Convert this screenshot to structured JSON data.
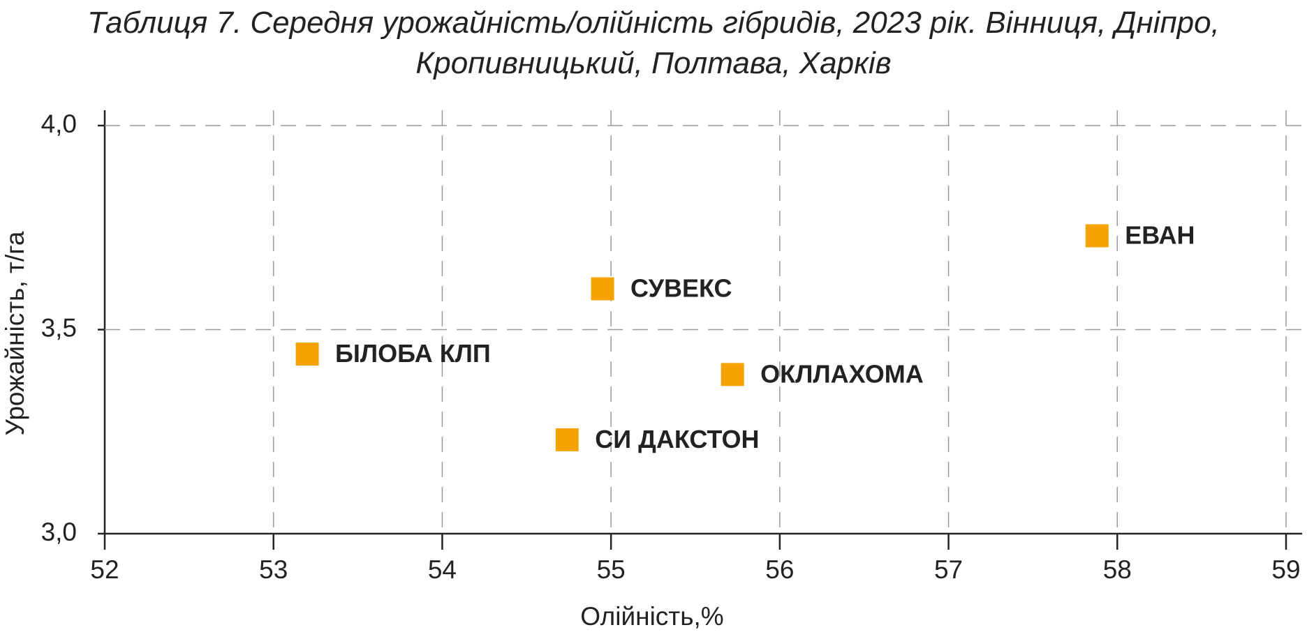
{
  "chart_data": {
    "type": "scatter",
    "title": "Таблиця 7. Середня урожайність/олійність гібридів, 2023 рік. Вінниця, Дніпро, Кропивницький, Полтава, Харків",
    "x_label": "Олійність,%",
    "y_label": "Урожайність, т/га",
    "labels": [
      "ЕВАН",
      "СУВЕКС",
      "БІЛОБА КЛП",
      "ОКЛЛАХОМА",
      "СИ ДАКСТОН"
    ],
    "x": [
      57.88,
      54.95,
      53.2,
      55.72,
      54.74
    ],
    "values": [
      3.73,
      3.6,
      3.44,
      3.39,
      3.23
    ],
    "color": "#f5a300",
    "xlim": [
      52,
      59
    ],
    "xticks": [
      52,
      53,
      54,
      55,
      56,
      57,
      58,
      59
    ],
    "ylim": [
      3.0,
      4.0
    ],
    "yticks": [
      {
        "value": 3.0,
        "label": "3,0"
      },
      {
        "value": 3.5,
        "label": "3,5"
      },
      {
        "value": 4.0,
        "label": "4,0"
      }
    ],
    "grid": true
  }
}
